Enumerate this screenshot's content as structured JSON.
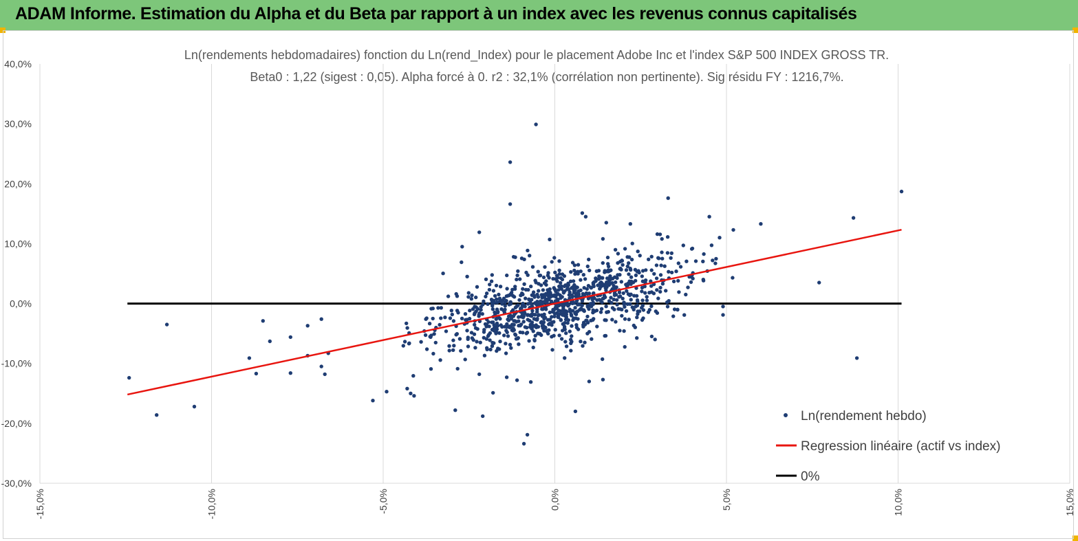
{
  "header": {
    "title": "ADAM Informe. Estimation du Alpha et du Beta par rapport à un index avec les revenus connus capitalisés",
    "background": "#7dc67a"
  },
  "chart_data": {
    "type": "scatter",
    "title_line1": "Ln(rendements hebdomadaires) fonction du Ln(rend_Index) pour le placement Adobe Inc et l'index S&P 500 INDEX GROSS TR.",
    "title_line2": "Beta0 : 1,22 (sigest : 0,05).  Alpha forcé à 0. r2 : 32,1% (corrélation non pertinente). Sig résidu FY : 1216,7%.",
    "xlim": [
      -0.15,
      0.15
    ],
    "ylim": [
      -0.3,
      0.4
    ],
    "x_ticks": [
      "-15,0%",
      "-10,0%",
      "-5,0%",
      "0,0%",
      "5,0%",
      "10,0%",
      "15,0%"
    ],
    "y_ticks": [
      "40,0%",
      "30,0%",
      "20,0%",
      "10,0%",
      "0,0%",
      "-10,0%",
      "-20,0%",
      "-30,0%"
    ],
    "grid": "vertical",
    "legend_position": "bottom-right",
    "series": [
      {
        "name": "Ln(rendement hebdo)",
        "kind": "scatter",
        "color": "#1f3d73",
        "beta": 1.22,
        "n_points": 1000,
        "seed": 1234,
        "x_sd": 0.018,
        "resid_sd": 0.033,
        "outliers": [
          [
            -0.124,
            -0.124
          ],
          [
            -0.113,
            -0.035
          ],
          [
            -0.116,
            -0.186
          ],
          [
            -0.105,
            -0.172
          ],
          [
            -0.089,
            -0.091
          ],
          [
            -0.087,
            -0.117
          ],
          [
            -0.085,
            -0.029
          ],
          [
            -0.083,
            -0.063
          ],
          [
            -0.077,
            -0.056
          ],
          [
            -0.077,
            -0.116
          ],
          [
            -0.072,
            -0.037
          ],
          [
            -0.072,
            -0.087
          ],
          [
            -0.068,
            -0.105
          ],
          [
            -0.068,
            -0.026
          ],
          [
            -0.067,
            -0.118
          ],
          [
            -0.066,
            -0.083
          ],
          [
            -0.053,
            -0.162
          ],
          [
            -0.049,
            -0.147
          ],
          [
            -0.042,
            -0.15
          ],
          [
            -0.041,
            -0.154
          ],
          [
            -0.043,
            -0.142
          ],
          [
            -0.029,
            -0.178
          ],
          [
            -0.021,
            -0.188
          ],
          [
            -0.022,
            -0.118
          ],
          [
            -0.018,
            -0.149
          ],
          [
            -0.014,
            -0.123
          ],
          [
            -0.013,
            0.166
          ],
          [
            -0.012,
            0.078
          ],
          [
            -0.011,
            -0.128
          ],
          [
            -0.009,
            -0.234
          ],
          [
            -0.008,
            -0.219
          ],
          [
            -0.007,
            -0.131
          ],
          [
            -0.0055,
            0.299
          ],
          [
            -0.013,
            0.236
          ],
          [
            -0.027,
            0.095
          ],
          [
            -0.022,
            0.119
          ],
          [
            0.006,
            -0.18
          ],
          [
            0.01,
            -0.13
          ],
          [
            0.014,
            -0.127
          ],
          [
            0.014,
            0.108
          ],
          [
            0.015,
            0.135
          ],
          [
            0.022,
            0.133
          ],
          [
            0.033,
            0.176
          ],
          [
            0.045,
            0.145
          ],
          [
            0.048,
            0.11
          ],
          [
            0.049,
            -0.005
          ],
          [
            0.049,
            -0.019
          ],
          [
            0.052,
            0.123
          ],
          [
            0.06,
            0.133
          ],
          [
            0.077,
            0.035
          ],
          [
            0.087,
            0.143
          ],
          [
            0.088,
            -0.091
          ],
          [
            0.101,
            0.187
          ],
          [
            0.008,
            0.151
          ],
          [
            0.009,
            0.145
          ],
          [
            -0.0015,
            0.107
          ]
        ]
      },
      {
        "name": "Regression linéaire (actif vs index)",
        "kind": "line",
        "color": "#e8150f",
        "x": [
          -0.1245,
          0.101
        ],
        "y": [
          -0.1519,
          0.1232
        ]
      },
      {
        "name": "0%",
        "kind": "line",
        "color": "#000000",
        "x": [
          -0.1245,
          0.101
        ],
        "y": [
          0,
          0
        ]
      }
    ]
  }
}
